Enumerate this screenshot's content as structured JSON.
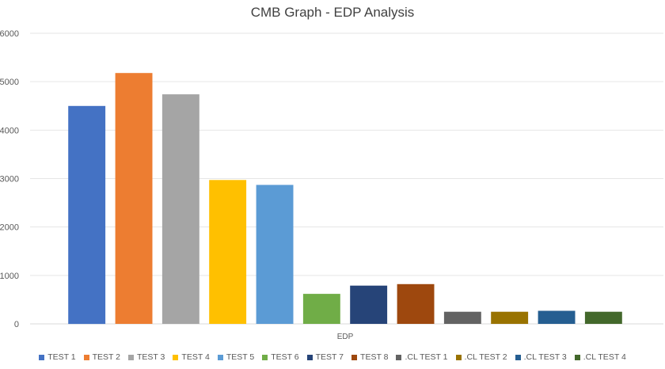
{
  "chart_data": {
    "type": "bar",
    "title": "CMB Graph - EDP Analysis",
    "xlabel": "",
    "ylabel": "",
    "categories": [
      "EDP"
    ],
    "ylim": [
      0,
      6000
    ],
    "yticks": [
      "0",
      "1000",
      "2000",
      "3000",
      "4000",
      "5000",
      "6000"
    ],
    "grid": true,
    "legend_position": "bottom",
    "series": [
      {
        "name": "TEST 1",
        "color": "#4472C4",
        "values": [
          4500
        ]
      },
      {
        "name": "TEST  2",
        "color": "#ED7D31",
        "values": [
          5180
        ]
      },
      {
        "name": "TEST  3",
        "color": "#A5A5A5",
        "values": [
          4740
        ]
      },
      {
        "name": "TEST  4",
        "color": "#FFC000",
        "values": [
          2970
        ]
      },
      {
        "name": "TEST 5",
        "color": "#5B9BD5",
        "values": [
          2870
        ]
      },
      {
        "name": "TEST  6",
        "color": "#70AD47",
        "values": [
          620
        ]
      },
      {
        "name": "TEST 7",
        "color": "#264478",
        "values": [
          790
        ]
      },
      {
        "name": "TEST 8",
        "color": "#9E480E",
        "values": [
          820
        ]
      },
      {
        "name": ".CL TEST 1",
        "color": "#636363",
        "values": [
          250
        ]
      },
      {
        "name": ".CL TEST 2",
        "color": "#997300",
        "values": [
          250
        ]
      },
      {
        "name": ".CL TEST 3",
        "color": "#255E91",
        "values": [
          270
        ]
      },
      {
        "name": ".CL TEST 4",
        "color": "#43682B",
        "values": [
          250
        ]
      }
    ]
  }
}
